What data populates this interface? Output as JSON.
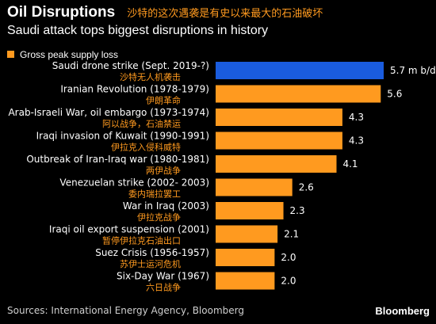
{
  "header": {
    "title": "Oil Disruptions",
    "title_cn": "沙特的这次遇袭是有史以来最大的石油破坏",
    "subtitle": "Saudi attack tops biggest disruptions in history"
  },
  "legend": {
    "label": "Gross peak supply loss",
    "color": "#ff9a1f"
  },
  "colors": {
    "highlight": "#1a5cde",
    "bar": "#ff9a1f",
    "label_cn": "#ff9a1f",
    "background": "#000000"
  },
  "footer": {
    "source": "Sources: International Energy Agency, Bloomberg",
    "brand": "Bloomberg"
  },
  "chart_data": {
    "type": "bar",
    "orientation": "horizontal",
    "categories": [
      "Saudi drone strike (Sept. 2019-?)",
      "Iranian Revolution (1978-1979)",
      "Arab-Israeli War, oil embargo (1973-1974)",
      "Iraqi invasion of Kuwait (1990-1991)",
      "Outbreak of Iran-Iraq war (1980-1981)",
      "Venezuelan strike (2002- 2003)",
      "War in Iraq (2003)",
      "Iraqi oil export suspension (2001)",
      "Suez Crisis (1956-1957)",
      "Six-Day War (1967)"
    ],
    "categories_cn": [
      "沙特无人机袭击",
      "伊朗革命",
      "阿以战争，石油禁运",
      "伊拉克入侵科威特",
      "两伊战争",
      "委内瑞拉罢工",
      "伊拉克战争",
      "暂停伊拉克石油出口",
      "苏伊士运河危机",
      "六日战争"
    ],
    "values": [
      5.7,
      5.6,
      4.3,
      4.3,
      4.1,
      2.6,
      2.3,
      2.1,
      2.0,
      2.0
    ],
    "value_labels": [
      "5.7 m b/d",
      "5.6",
      "4.3",
      "4.3",
      "4.1",
      "2.6",
      "2.3",
      "2.1",
      "2.0",
      "2.0"
    ],
    "highlight_index": 0,
    "xlim": [
      0,
      5.7
    ]
  }
}
